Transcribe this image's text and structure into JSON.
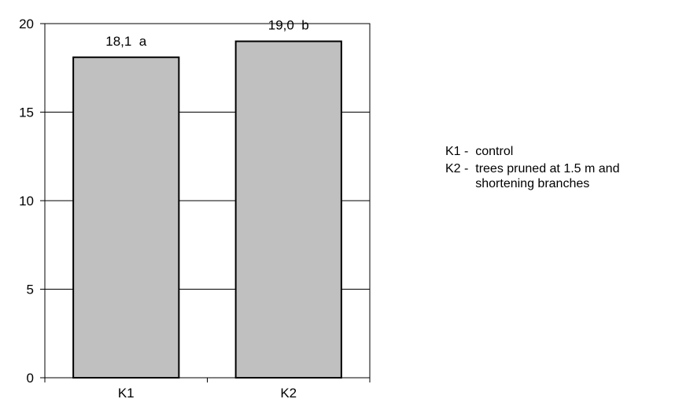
{
  "chart_data": {
    "type": "bar",
    "categories": [
      "K1",
      "K2"
    ],
    "values": [
      18.1,
      19.0
    ],
    "data_labels": [
      "18,1  a",
      "19,0  b"
    ],
    "ylim": [
      0,
      20
    ],
    "yticks": [
      0,
      5,
      10,
      15,
      20
    ],
    "grid": true,
    "colors": {
      "bar_fill": "#c0c0c0",
      "bar_stroke": "#000000",
      "grid": "#000000",
      "frame": "#000000"
    },
    "legend": {
      "placement": "right",
      "entries": [
        {
          "key": "K1",
          "separator": " -  ",
          "description": "control"
        },
        {
          "key": "K2",
          "separator": " -  ",
          "description": "trees pruned at 1.5 m and\nshortening  branches"
        }
      ]
    }
  }
}
